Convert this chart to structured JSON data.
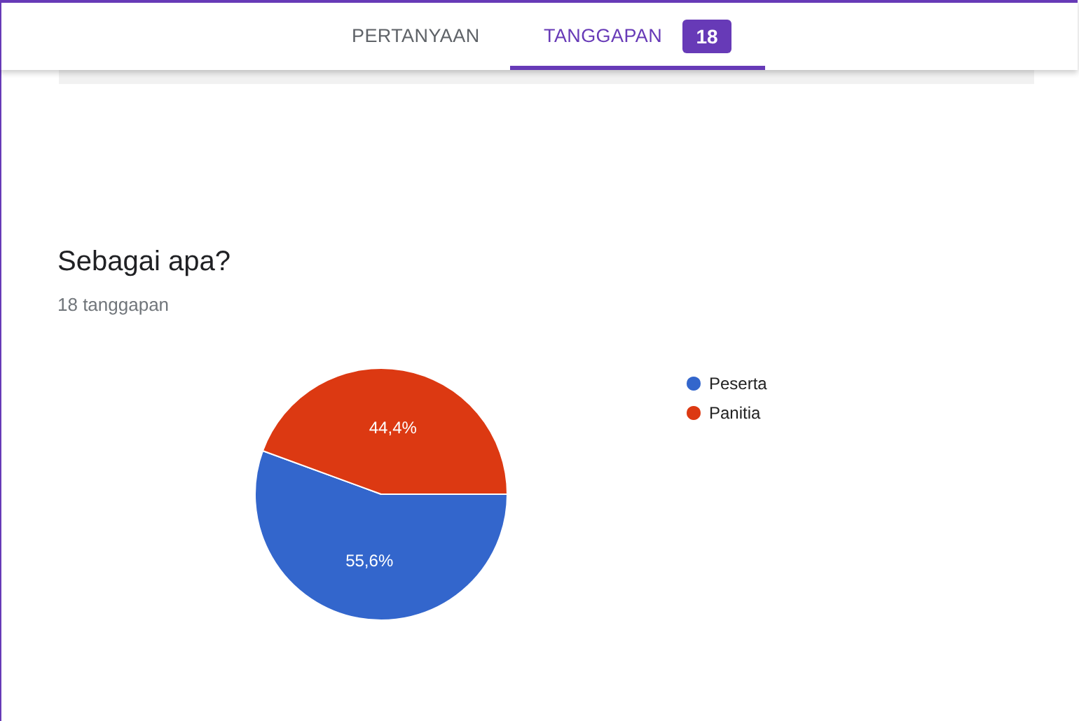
{
  "chart_data": {
    "type": "pie",
    "title": "Sebagai apa?",
    "subtitle": "18 tanggapan",
    "annotations": [
      "PERTANYAAN",
      "TANGGAPAN",
      "18"
    ],
    "categories": [
      "Peserta",
      "Panitia"
    ],
    "values": [
      55.6,
      44.4
    ],
    "colors": [
      "#3366cc",
      "#dc3912"
    ],
    "value_labels": [
      "55,6%",
      "44,4%"
    ],
    "legend": "right"
  }
}
